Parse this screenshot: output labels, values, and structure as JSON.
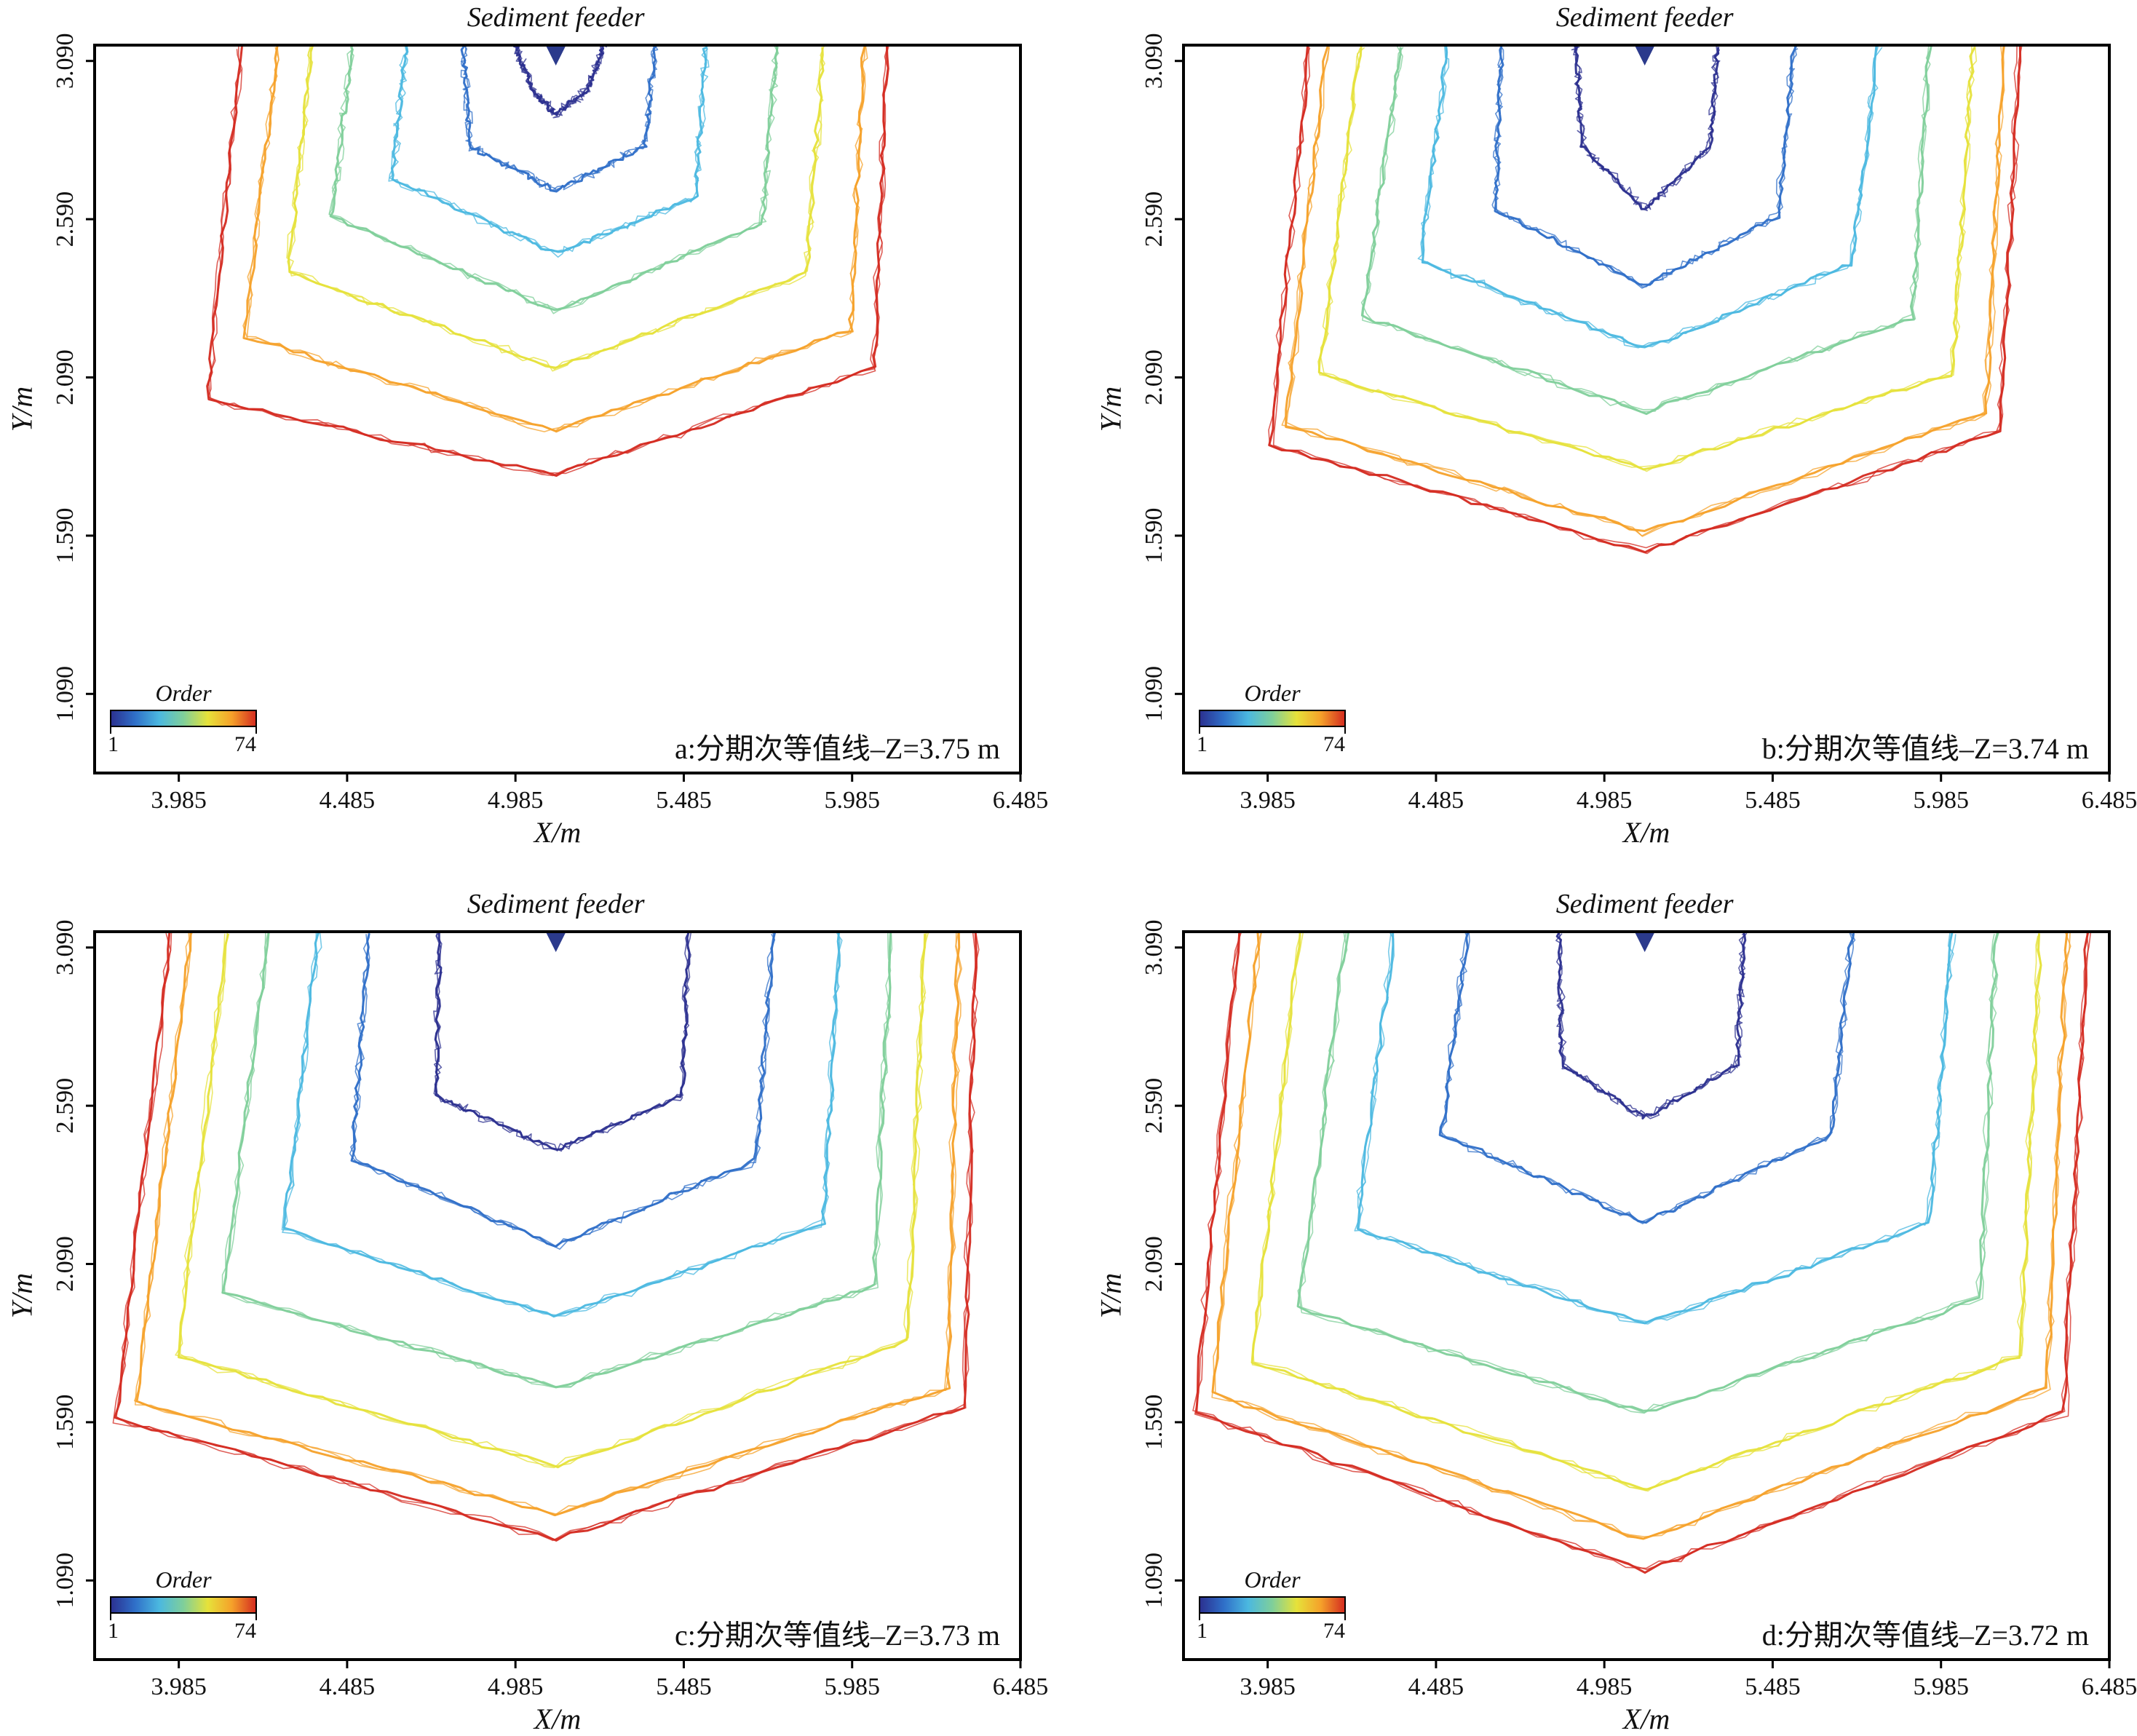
{
  "figure": {
    "chart_data": [
      {
        "type": "line",
        "panel_label": "a:分期次等值线–Z=3.75 m",
        "title": "Sediment feeder",
        "xlabel": "X/m",
        "ylabel": "Y/m",
        "xlim": [
          3.735,
          6.485
        ],
        "ylim": [
          0.84,
          3.14
        ],
        "x_ticks": [
          "3.985",
          "4.485",
          "4.985",
          "5.485",
          "5.985",
          "6.485"
        ],
        "y_ticks": [
          "1.090",
          "1.590",
          "2.090",
          "2.590",
          "3.090"
        ],
        "colorbar": {
          "title": "Order",
          "min": "1",
          "max": "74",
          "colors": [
            "#2b2f8f",
            "#2f6fc8",
            "#4bb8e0",
            "#7fcf9a",
            "#e6e23a",
            "#f5a12a",
            "#d42a20"
          ]
        },
        "feeder": {
          "x": 5.105,
          "y": 3.12
        },
        "series": [
          {
            "values": [
              [
                4.985,
                3.14
              ],
              [
                5.035,
                3.0
              ],
              [
                5.105,
                2.92
              ],
              [
                5.2,
                3.0
              ],
              [
                5.25,
                3.14
              ]
            ]
          },
          {
            "values": [
              [
                4.83,
                3.14
              ],
              [
                4.85,
                2.82
              ],
              [
                5.105,
                2.68
              ],
              [
                5.37,
                2.82
              ],
              [
                5.4,
                3.14
              ]
            ]
          },
          {
            "values": [
              [
                4.66,
                3.14
              ],
              [
                4.62,
                2.72
              ],
              [
                5.105,
                2.48
              ],
              [
                5.52,
                2.66
              ],
              [
                5.55,
                3.14
              ]
            ]
          },
          {
            "values": [
              [
                4.5,
                3.14
              ],
              [
                4.44,
                2.6
              ],
              [
                5.105,
                2.3
              ],
              [
                5.72,
                2.58
              ],
              [
                5.76,
                3.14
              ]
            ]
          },
          {
            "values": [
              [
                4.38,
                3.14
              ],
              [
                4.31,
                2.42
              ],
              [
                5.105,
                2.12
              ],
              [
                5.85,
                2.42
              ],
              [
                5.9,
                3.14
              ]
            ]
          },
          {
            "values": [
              [
                4.28,
                3.14
              ],
              [
                4.18,
                2.22
              ],
              [
                5.105,
                1.92
              ],
              [
                5.98,
                2.24
              ],
              [
                6.02,
                3.14
              ]
            ]
          },
          {
            "values": [
              [
                4.17,
                3.14
              ],
              [
                4.07,
                2.02
              ],
              [
                5.105,
                1.78
              ],
              [
                6.05,
                2.12
              ],
              [
                6.09,
                3.14
              ]
            ]
          }
        ]
      },
      {
        "type": "line",
        "panel_label": "b:分期次等值线–Z=3.74 m",
        "title": "Sediment feeder",
        "xlabel": "X/m",
        "ylabel": "Y/m",
        "xlim": [
          3.735,
          6.485
        ],
        "ylim": [
          0.84,
          3.14
        ],
        "x_ticks": [
          "3.985",
          "4.485",
          "4.985",
          "5.485",
          "5.985",
          "6.485"
        ],
        "y_ticks": [
          "1.090",
          "1.590",
          "2.090",
          "2.590",
          "3.090"
        ],
        "colorbar": {
          "title": "Order",
          "min": "1",
          "max": "74",
          "colors": [
            "#2b2f8f",
            "#2f6fc8",
            "#4bb8e0",
            "#7fcf9a",
            "#e6e23a",
            "#f5a12a",
            "#d42a20"
          ]
        },
        "feeder": {
          "x": 5.105,
          "y": 3.12
        },
        "series": [
          {
            "values": [
              [
                4.9,
                3.14
              ],
              [
                4.92,
                2.82
              ],
              [
                5.105,
                2.62
              ],
              [
                5.3,
                2.82
              ],
              [
                5.32,
                3.14
              ]
            ]
          },
          {
            "values": [
              [
                4.68,
                3.14
              ],
              [
                4.66,
                2.62
              ],
              [
                5.105,
                2.38
              ],
              [
                5.5,
                2.6
              ],
              [
                5.55,
                3.14
              ]
            ]
          },
          {
            "values": [
              [
                4.52,
                3.14
              ],
              [
                4.44,
                2.46
              ],
              [
                5.105,
                2.18
              ],
              [
                5.72,
                2.45
              ],
              [
                5.8,
                3.14
              ]
            ]
          },
          {
            "values": [
              [
                4.38,
                3.14
              ],
              [
                4.27,
                2.28
              ],
              [
                5.105,
                1.98
              ],
              [
                5.9,
                2.28
              ],
              [
                5.95,
                3.14
              ]
            ]
          },
          {
            "values": [
              [
                4.26,
                3.14
              ],
              [
                4.14,
                2.1
              ],
              [
                5.105,
                1.8
              ],
              [
                6.02,
                2.1
              ],
              [
                6.08,
                3.14
              ]
            ]
          },
          {
            "values": [
              [
                4.16,
                3.14
              ],
              [
                4.04,
                1.94
              ],
              [
                5.105,
                1.6
              ],
              [
                6.12,
                1.98
              ],
              [
                6.17,
                3.14
              ]
            ]
          },
          {
            "values": [
              [
                4.11,
                3.14
              ],
              [
                3.99,
                1.88
              ],
              [
                5.105,
                1.54
              ],
              [
                6.16,
                1.92
              ],
              [
                6.22,
                3.14
              ]
            ]
          }
        ]
      },
      {
        "type": "line",
        "panel_label": "c:分期次等值线–Z=3.73 m",
        "title": "Sediment feeder",
        "xlabel": "X/m",
        "ylabel": "Y/m",
        "xlim": [
          3.735,
          6.485
        ],
        "ylim": [
          0.84,
          3.14
        ],
        "x_ticks": [
          "3.985",
          "4.485",
          "4.985",
          "5.485",
          "5.985",
          "6.485"
        ],
        "y_ticks": [
          "1.090",
          "1.590",
          "2.090",
          "2.590",
          "3.090"
        ],
        "colorbar": {
          "title": "Order",
          "min": "1",
          "max": "74",
          "colors": [
            "#2b2f8f",
            "#2f6fc8",
            "#4bb8e0",
            "#7fcf9a",
            "#e6e23a",
            "#f5a12a",
            "#d42a20"
          ]
        },
        "feeder": {
          "x": 5.105,
          "y": 3.12
        },
        "series": [
          {
            "values": [
              [
                4.76,
                3.14
              ],
              [
                4.75,
                2.62
              ],
              [
                5.105,
                2.45
              ],
              [
                5.48,
                2.62
              ],
              [
                5.5,
                3.14
              ]
            ]
          },
          {
            "values": [
              [
                4.55,
                3.14
              ],
              [
                4.5,
                2.42
              ],
              [
                5.105,
                2.15
              ],
              [
                5.7,
                2.42
              ],
              [
                5.75,
                3.14
              ]
            ]
          },
          {
            "values": [
              [
                4.4,
                3.14
              ],
              [
                4.3,
                2.2
              ],
              [
                5.105,
                1.92
              ],
              [
                5.9,
                2.22
              ],
              [
                5.95,
                3.14
              ]
            ]
          },
          {
            "values": [
              [
                4.25,
                3.14
              ],
              [
                4.12,
                2.0
              ],
              [
                5.105,
                1.7
              ],
              [
                6.05,
                2.02
              ],
              [
                6.1,
                3.14
              ]
            ]
          },
          {
            "values": [
              [
                4.13,
                3.14
              ],
              [
                3.98,
                1.8
              ],
              [
                5.105,
                1.45
              ],
              [
                6.15,
                1.85
              ],
              [
                6.2,
                3.14
              ]
            ]
          },
          {
            "values": [
              [
                4.02,
                3.14
              ],
              [
                3.86,
                1.65
              ],
              [
                5.105,
                1.3
              ],
              [
                6.27,
                1.7
              ],
              [
                6.3,
                3.14
              ]
            ]
          },
          {
            "values": [
              [
                3.96,
                3.14
              ],
              [
                3.8,
                1.6
              ],
              [
                5.105,
                1.22
              ],
              [
                6.32,
                1.64
              ],
              [
                6.35,
                3.14
              ]
            ]
          }
        ]
      },
      {
        "type": "line",
        "panel_label": "d:分期次等值线–Z=3.72 m",
        "title": "Sediment feeder",
        "xlabel": "X/m",
        "ylabel": "Y/m",
        "xlim": [
          3.735,
          6.485
        ],
        "ylim": [
          0.84,
          3.14
        ],
        "x_ticks": [
          "3.985",
          "4.485",
          "4.985",
          "5.485",
          "5.985",
          "6.485"
        ],
        "y_ticks": [
          "1.090",
          "1.590",
          "2.090",
          "2.590",
          "3.090"
        ],
        "colorbar": {
          "title": "Order",
          "min": "1",
          "max": "74",
          "colors": [
            "#2b2f8f",
            "#2f6fc8",
            "#4bb8e0",
            "#7fcf9a",
            "#e6e23a",
            "#f5a12a",
            "#d42a20"
          ]
        },
        "feeder": {
          "x": 5.105,
          "y": 3.12
        },
        "series": [
          {
            "values": [
              [
                4.85,
                3.14
              ],
              [
                4.86,
                2.72
              ],
              [
                5.105,
                2.55
              ],
              [
                5.38,
                2.72
              ],
              [
                5.4,
                3.14
              ]
            ]
          },
          {
            "values": [
              [
                4.58,
                3.14
              ],
              [
                4.5,
                2.5
              ],
              [
                5.105,
                2.22
              ],
              [
                5.66,
                2.5
              ],
              [
                5.72,
                3.14
              ]
            ]
          },
          {
            "values": [
              [
                4.36,
                3.14
              ],
              [
                4.25,
                2.2
              ],
              [
                5.105,
                1.9
              ],
              [
                5.95,
                2.22
              ],
              [
                6.02,
                3.14
              ]
            ]
          },
          {
            "values": [
              [
                4.22,
                3.14
              ],
              [
                4.08,
                1.95
              ],
              [
                5.105,
                1.62
              ],
              [
                6.1,
                1.98
              ],
              [
                6.15,
                3.14
              ]
            ]
          },
          {
            "values": [
              [
                4.08,
                3.14
              ],
              [
                3.94,
                1.78
              ],
              [
                5.105,
                1.38
              ],
              [
                6.22,
                1.8
              ],
              [
                6.28,
                3.14
              ]
            ]
          },
          {
            "values": [
              [
                3.96,
                3.14
              ],
              [
                3.82,
                1.68
              ],
              [
                5.105,
                1.22
              ],
              [
                6.3,
                1.7
              ],
              [
                6.36,
                3.14
              ]
            ]
          },
          {
            "values": [
              [
                3.9,
                3.14
              ],
              [
                3.77,
                1.62
              ],
              [
                5.105,
                1.12
              ],
              [
                6.35,
                1.62
              ],
              [
                6.42,
                3.14
              ]
            ]
          }
        ]
      }
    ]
  }
}
